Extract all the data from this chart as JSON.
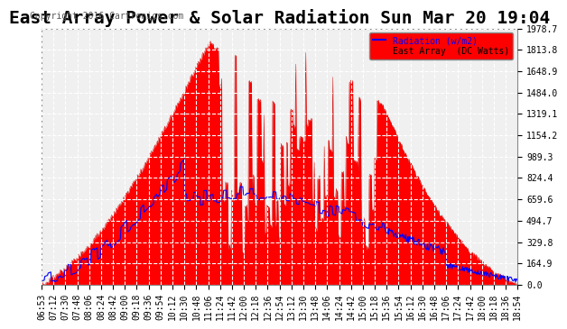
{
  "title": "East Array Power & Solar Radiation Sun Mar 20 19:04",
  "copyright": "Copyright 2016 Cartronics.com",
  "background_color": "#ffffff",
  "plot_bg_color": "#f0f0f0",
  "grid_color": "#ffffff",
  "legend_labels": [
    "Radiation (w/m2)",
    "East Array  (DC Watts)"
  ],
  "legend_colors": [
    "#0000ff",
    "#ff0000"
  ],
  "legend_bg": "#ff0000",
  "ytick_labels": [
    "0.0",
    "164.9",
    "329.8",
    "494.7",
    "659.6",
    "824.4",
    "989.3",
    "1154.2",
    "1319.1",
    "1484.0",
    "1648.9",
    "1813.8",
    "1978.7"
  ],
  "ytick_values": [
    0.0,
    164.9,
    329.8,
    494.7,
    659.6,
    824.4,
    989.3,
    1154.2,
    1319.1,
    1484.0,
    1648.9,
    1813.8,
    1978.7
  ],
  "ymax": 1978.7,
  "ymin": 0.0,
  "xtick_labels": [
    "06:53",
    "07:12",
    "07:30",
    "07:48",
    "08:06",
    "08:24",
    "08:42",
    "09:00",
    "09:18",
    "09:36",
    "09:54",
    "10:12",
    "10:30",
    "10:48",
    "11:06",
    "11:24",
    "11:42",
    "12:00",
    "12:18",
    "12:36",
    "12:54",
    "13:12",
    "13:30",
    "13:48",
    "14:06",
    "14:24",
    "14:42",
    "15:00",
    "15:18",
    "15:36",
    "15:54",
    "16:12",
    "16:30",
    "16:48",
    "17:06",
    "17:24",
    "17:42",
    "18:00",
    "18:18",
    "18:36",
    "18:54"
  ],
  "title_fontsize": 14,
  "axis_fontsize": 7,
  "copyright_fontsize": 7
}
